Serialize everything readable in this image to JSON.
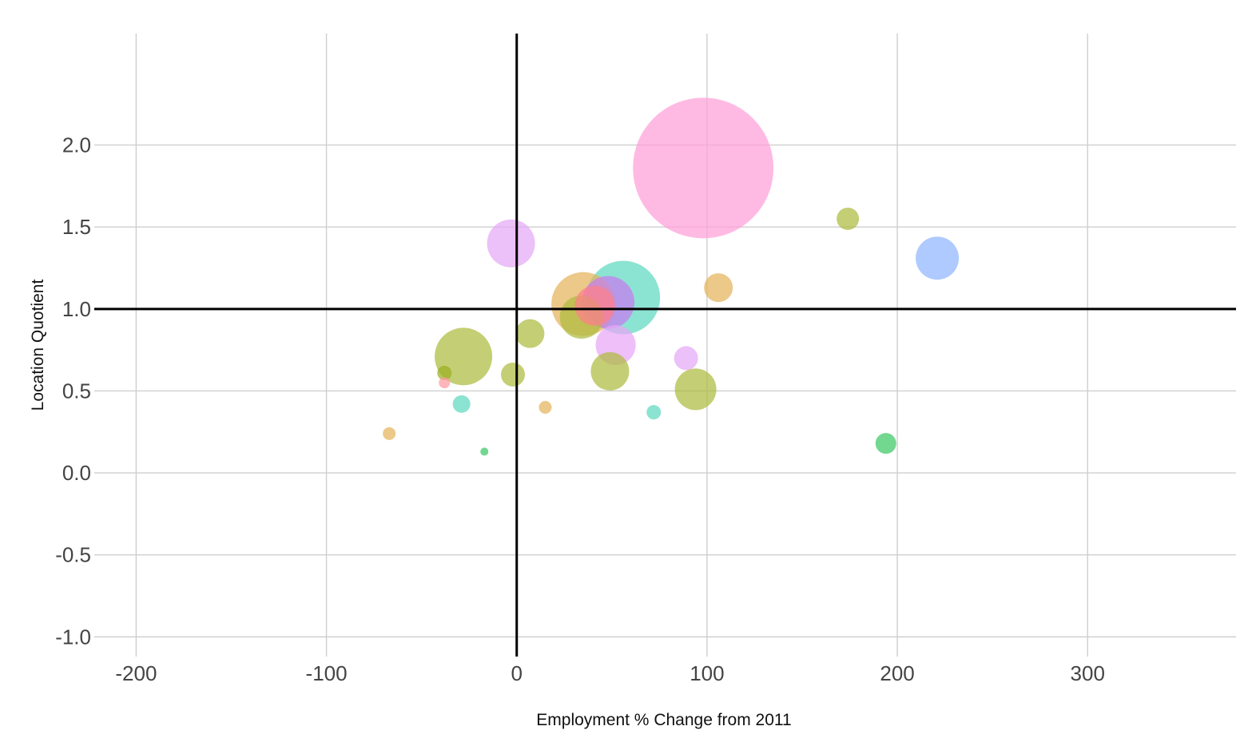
{
  "chart_data": {
    "type": "scatter",
    "variant": "bubble",
    "xlabel": "Employment % Change from 2011",
    "ylabel": "Location Quotient",
    "xlim": [
      -222,
      378
    ],
    "ylim": [
      -1.12,
      2.68
    ],
    "xticks": [
      -200,
      -100,
      0,
      100,
      200,
      300
    ],
    "yticks": [
      2.0,
      1.5,
      1.0,
      0.5,
      0.0,
      -0.5,
      -1.0
    ],
    "xtick_labels": [
      "-200",
      "-100",
      "0",
      "100",
      "200",
      "300"
    ],
    "ytick_labels": [
      "2.0",
      "1.5",
      "1.0",
      "0.5",
      "0.0",
      "-0.5",
      "-1.0"
    ],
    "reference_lines": {
      "x": 0,
      "y": 1.0
    },
    "grid": true,
    "legend": "none",
    "size_unit": "relative employment (bubble radius scale)",
    "points": [
      {
        "x": 98,
        "y": 1.86,
        "size": 88,
        "color": "#ff9fd8"
      },
      {
        "x": 56,
        "y": 1.07,
        "size": 46,
        "color": "#5ed8c0"
      },
      {
        "x": 35,
        "y": 1.03,
        "size": 40,
        "color": "#e4b35c"
      },
      {
        "x": 48,
        "y": 1.04,
        "size": 33,
        "color": "#c77bf0"
      },
      {
        "x": 41,
        "y": 1.02,
        "size": 25,
        "color": "#ff7f8a"
      },
      {
        "x": 34,
        "y": 0.95,
        "size": 27,
        "color": "#adbb3f"
      },
      {
        "x": 52,
        "y": 0.78,
        "size": 25,
        "color": "#e9a6f7"
      },
      {
        "x": -28,
        "y": 0.71,
        "size": 36,
        "color": "#adbb3f"
      },
      {
        "x": -3,
        "y": 1.4,
        "size": 30,
        "color": "#e4a8f7"
      },
      {
        "x": 7,
        "y": 0.85,
        "size": 18,
        "color": "#adbb3f"
      },
      {
        "x": 49,
        "y": 0.62,
        "size": 24,
        "color": "#adbb3f"
      },
      {
        "x": 94,
        "y": 0.51,
        "size": 26,
        "color": "#adbb3f"
      },
      {
        "x": 89,
        "y": 0.7,
        "size": 15,
        "color": "#e4a8f7"
      },
      {
        "x": 106,
        "y": 1.13,
        "size": 18,
        "color": "#e4b35c"
      },
      {
        "x": 174,
        "y": 1.55,
        "size": 14,
        "color": "#adbb3f"
      },
      {
        "x": 221,
        "y": 1.31,
        "size": 27,
        "color": "#8fb5ff"
      },
      {
        "x": 194,
        "y": 0.18,
        "size": 13,
        "color": "#3cc764"
      },
      {
        "x": 72,
        "y": 0.37,
        "size": 9,
        "color": "#5ed8c0"
      },
      {
        "x": -2,
        "y": 0.6,
        "size": 15,
        "color": "#adbb3f"
      },
      {
        "x": 15,
        "y": 0.4,
        "size": 8,
        "color": "#e4b35c"
      },
      {
        "x": -29,
        "y": 0.42,
        "size": 11,
        "color": "#5ed8c0"
      },
      {
        "x": -38,
        "y": 0.61,
        "size": 9,
        "color": "#99b020"
      },
      {
        "x": -38,
        "y": 0.55,
        "size": 7,
        "color": "#ff9aa0"
      },
      {
        "x": -67,
        "y": 0.24,
        "size": 8,
        "color": "#e4b35c"
      },
      {
        "x": -17,
        "y": 0.13,
        "size": 5,
        "color": "#3cc764"
      }
    ]
  }
}
